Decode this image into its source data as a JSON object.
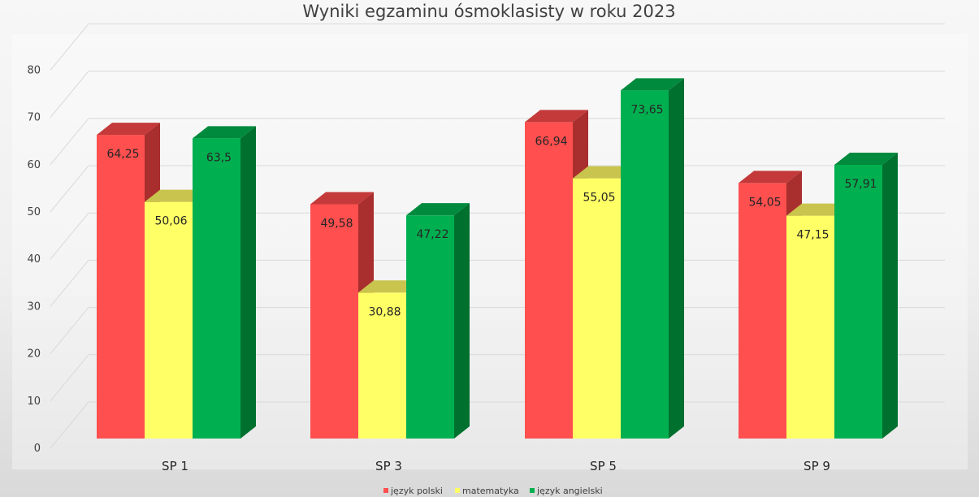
{
  "chart_data": {
    "type": "bar",
    "title": "Wyniki egzaminu ósmoklasisty w roku 2023",
    "categories": [
      "SP 1",
      "SP 3",
      "SP 5",
      "SP 9"
    ],
    "series": [
      {
        "name": "język polski",
        "values": [
          64.25,
          49.58,
          66.94,
          54.05
        ],
        "labels": [
          "64,25",
          "49,58",
          "66,94",
          "54,05"
        ],
        "color": "#ff4f4f",
        "side_color": "#a92e2e",
        "top_color": "#c43a3a"
      },
      {
        "name": "matematyka",
        "values": [
          50.06,
          30.88,
          55.05,
          47.15
        ],
        "labels": [
          "50,06",
          "30,88",
          "55,05",
          "47,15"
        ],
        "color": "#ffff66",
        "side_color": "#a8a83c",
        "top_color": "#c9c44e"
      },
      {
        "name": "język angielski",
        "values": [
          63.5,
          47.22,
          73.65,
          57.91
        ],
        "labels": [
          "63,5",
          "47,22",
          "73,65",
          "57,91"
        ],
        "color": "#00b050",
        "side_color": "#00702f",
        "top_color": "#008a3d"
      }
    ],
    "ylim": [
      0,
      80
    ],
    "yticks": [
      "0",
      "10",
      "20",
      "30",
      "40",
      "50",
      "60",
      "70",
      "80"
    ],
    "grid": true,
    "legend": "bottom"
  }
}
